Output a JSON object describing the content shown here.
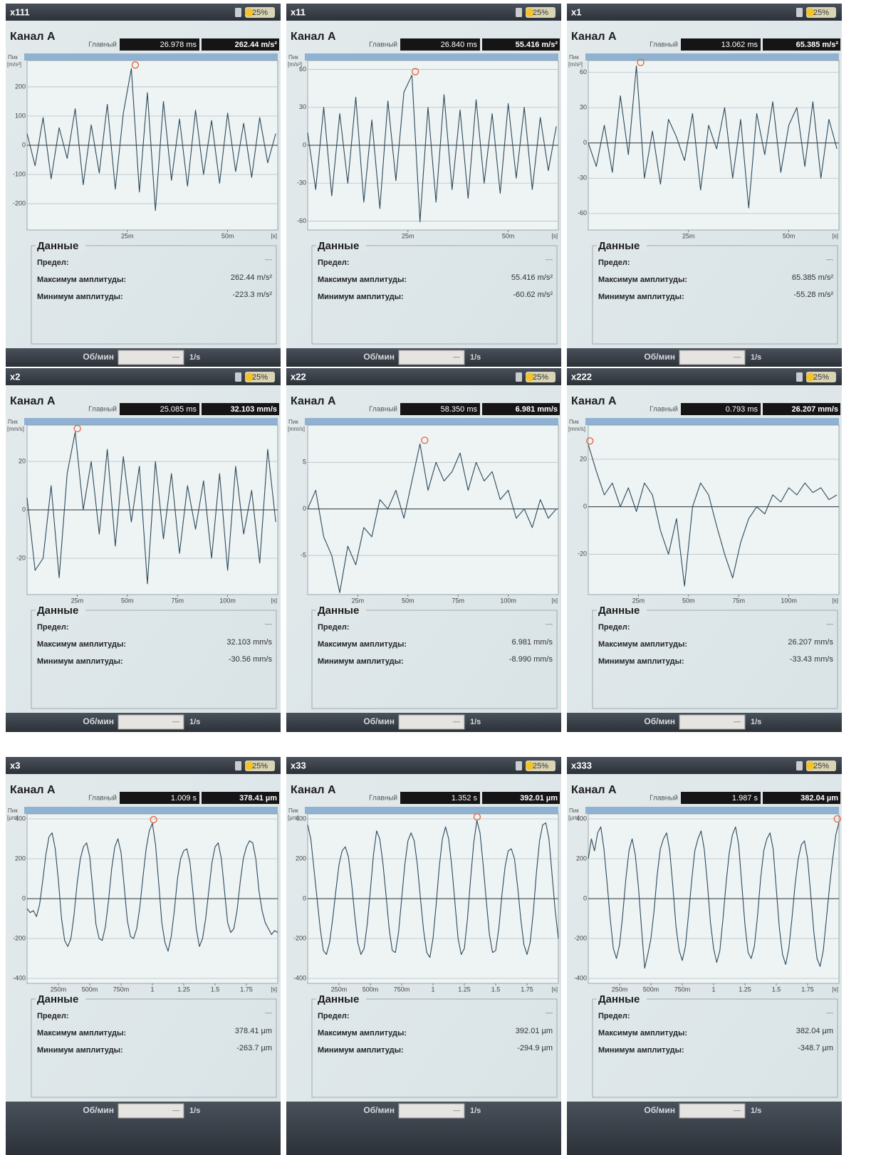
{
  "ui": {
    "battery": "25%",
    "channel": "Канал А",
    "main": "Главный",
    "data_title": "Данные",
    "limit": "Предел:",
    "limit_value": "—",
    "max": "Максимум амплитуды:",
    "min": "Минимум амплитуды:",
    "rpm": "Об/мин",
    "rpm_input": "—",
    "rpm_unit": "1/s"
  },
  "chart_data": [
    {
      "type": "line",
      "title": "x111",
      "y_label": "Пик",
      "y_unit": "[m/s²]",
      "x_label": "[s]",
      "color": "#2b4a5c",
      "grid": true,
      "xlim": [
        0,
        0.0625
      ],
      "xticks": [
        {
          "value": 0.025,
          "label": "25m"
        },
        {
          "value": 0.05,
          "label": "50m"
        }
      ],
      "ylim": [
        -290,
        290
      ],
      "yticks": [
        200,
        100,
        0,
        -100,
        -200
      ],
      "x": [
        0,
        0.002,
        0.004,
        0.006,
        0.008,
        0.01,
        0.012,
        0.014,
        0.016,
        0.018,
        0.02,
        0.022,
        0.024,
        0.026,
        0.028,
        0.03,
        0.032,
        0.034,
        0.036,
        0.038,
        0.04,
        0.042,
        0.044,
        0.046,
        0.048,
        0.05,
        0.052,
        0.054,
        0.056,
        0.058,
        0.06,
        0.062
      ],
      "values": [
        40,
        -70,
        95,
        -115,
        60,
        -45,
        125,
        -135,
        70,
        -95,
        140,
        -150,
        110,
        262.44,
        -160,
        180,
        -223.3,
        150,
        -120,
        90,
        -140,
        120,
        -100,
        85,
        -130,
        110,
        -90,
        75,
        -110,
        95,
        -60,
        40
      ],
      "cursor": {
        "x": 0.026978,
        "y": 262.44,
        "x_label": "26.978 ms",
        "y_label": "262.44 m/s²"
      },
      "max_label": "262.44 m/s²",
      "min_label": "-223.3 m/s²"
    },
    {
      "type": "line",
      "title": "x11",
      "y_label": "Пик",
      "y_unit": "[m/s²]",
      "x_label": "[s]",
      "color": "#2b4a5c",
      "grid": true,
      "xlim": [
        0,
        0.0625
      ],
      "xticks": [
        {
          "value": 0.025,
          "label": "25m"
        },
        {
          "value": 0.05,
          "label": "50m"
        }
      ],
      "ylim": [
        -67,
        67
      ],
      "yticks": [
        60,
        30,
        0,
        -30,
        -60
      ],
      "x": [
        0,
        0.002,
        0.004,
        0.006,
        0.008,
        0.01,
        0.012,
        0.014,
        0.016,
        0.018,
        0.02,
        0.022,
        0.024,
        0.026,
        0.028,
        0.03,
        0.032,
        0.034,
        0.036,
        0.038,
        0.04,
        0.042,
        0.044,
        0.046,
        0.048,
        0.05,
        0.052,
        0.054,
        0.056,
        0.058,
        0.06,
        0.062
      ],
      "values": [
        10,
        -35,
        30,
        -40,
        25,
        -30,
        38,
        -45,
        20,
        -50,
        35,
        -28,
        42,
        55.416,
        -60.62,
        30,
        -45,
        40,
        -35,
        28,
        -42,
        36,
        -30,
        25,
        -38,
        33,
        -26,
        30,
        -35,
        22,
        -20,
        15
      ],
      "cursor": {
        "x": 0.02684,
        "y": 55.416,
        "x_label": "26.840 ms",
        "y_label": "55.416 m/s²"
      },
      "max_label": "55.416 m/s²",
      "min_label": "-60.62 m/s²"
    },
    {
      "type": "line",
      "title": "x1",
      "y_label": "Пик",
      "y_unit": "[m/s²]",
      "x_label": "[s]",
      "color": "#2b4a5c",
      "grid": true,
      "xlim": [
        0,
        0.0625
      ],
      "xticks": [
        {
          "value": 0.025,
          "label": "25m"
        },
        {
          "value": 0.05,
          "label": "50m"
        }
      ],
      "ylim": [
        -74,
        70
      ],
      "yticks": [
        60,
        30,
        0,
        -30,
        -60
      ],
      "x": [
        0,
        0.002,
        0.004,
        0.006,
        0.008,
        0.01,
        0.012,
        0.014,
        0.016,
        0.018,
        0.02,
        0.022,
        0.024,
        0.026,
        0.028,
        0.03,
        0.032,
        0.034,
        0.036,
        0.038,
        0.04,
        0.042,
        0.044,
        0.046,
        0.048,
        0.05,
        0.052,
        0.054,
        0.056,
        0.058,
        0.06,
        0.062
      ],
      "values": [
        0,
        -20,
        15,
        -25,
        40,
        -10,
        65.385,
        -30,
        10,
        -35,
        20,
        5,
        -15,
        25,
        -40,
        15,
        -5,
        30,
        -30,
        20,
        -55.28,
        25,
        -10,
        35,
        -25,
        15,
        30,
        -20,
        35,
        -30,
        20,
        -5
      ],
      "cursor": {
        "x": 0.013062,
        "y": 65.385,
        "x_label": "13.062 ms",
        "y_label": "65.385 m/s²"
      },
      "max_label": "65.385 m/s²",
      "min_label": "-55.28 m/s²"
    },
    {
      "type": "line",
      "title": "x2",
      "y_label": "Пик",
      "y_unit": "[mm/s]",
      "x_label": "[s]",
      "color": "#2b4a5c",
      "grid": true,
      "xlim": [
        0,
        0.125
      ],
      "xticks": [
        {
          "value": 0.025,
          "label": "25m"
        },
        {
          "value": 0.05,
          "label": "50m"
        },
        {
          "value": 0.075,
          "label": "75m"
        },
        {
          "value": 0.1,
          "label": "100m"
        }
      ],
      "ylim": [
        -35,
        35
      ],
      "yticks": [
        20,
        0,
        -20
      ],
      "x": [
        0,
        0.004,
        0.008,
        0.012,
        0.016,
        0.02,
        0.024,
        0.028,
        0.032,
        0.036,
        0.04,
        0.044,
        0.048,
        0.052,
        0.056,
        0.06,
        0.064,
        0.068,
        0.072,
        0.076,
        0.08,
        0.084,
        0.088,
        0.092,
        0.096,
        0.1,
        0.104,
        0.108,
        0.112,
        0.116,
        0.12,
        0.124
      ],
      "values": [
        5,
        -25,
        -20,
        10,
        -28,
        15,
        32.103,
        0,
        20,
        -10,
        25,
        -15,
        22,
        -5,
        18,
        -30.56,
        20,
        -12,
        15,
        -18,
        10,
        -8,
        12,
        -20,
        15,
        -25,
        18,
        -10,
        8,
        -22,
        25,
        -5
      ],
      "cursor": {
        "x": 0.025085,
        "y": 32.103,
        "x_label": "25.085 ms",
        "y_label": "32.103 mm/s"
      },
      "max_label": "32.103 mm/s",
      "min_label": "-30.56 mm/s"
    },
    {
      "type": "line",
      "title": "x22",
      "y_label": "Пик",
      "y_unit": "[mm/s]",
      "x_label": "[s]",
      "color": "#2b4a5c",
      "grid": true,
      "xlim": [
        0,
        0.125
      ],
      "xticks": [
        {
          "value": 0.025,
          "label": "25m"
        },
        {
          "value": 0.05,
          "label": "50m"
        },
        {
          "value": 0.075,
          "label": "75m"
        },
        {
          "value": 0.1,
          "label": "100m"
        }
      ],
      "ylim": [
        -9.2,
        9
      ],
      "yticks": [
        5,
        0,
        -5
      ],
      "x": [
        0,
        0.004,
        0.008,
        0.012,
        0.016,
        0.02,
        0.024,
        0.028,
        0.032,
        0.036,
        0.04,
        0.044,
        0.048,
        0.052,
        0.056,
        0.06,
        0.064,
        0.068,
        0.072,
        0.076,
        0.08,
        0.084,
        0.088,
        0.092,
        0.096,
        0.1,
        0.104,
        0.108,
        0.112,
        0.116,
        0.12,
        0.124
      ],
      "values": [
        0,
        2,
        -3,
        -5,
        -8.99,
        -4,
        -6,
        -2,
        -3,
        1,
        0,
        2,
        -1,
        3,
        6.981,
        2,
        5,
        3,
        4,
        6,
        2,
        5,
        3,
        4,
        1,
        2,
        -1,
        0,
        -2,
        1,
        -1,
        0
      ],
      "cursor": {
        "x": 0.05835,
        "y": 6.981,
        "x_label": "58.350 ms",
        "y_label": "6.981 mm/s"
      },
      "max_label": "6.981 mm/s",
      "min_label": "-8.990 mm/s"
    },
    {
      "type": "line",
      "title": "x222",
      "y_label": "Пик",
      "y_unit": "[mm/s]",
      "x_label": "[s]",
      "color": "#2b4a5c",
      "grid": true,
      "xlim": [
        0,
        0.125
      ],
      "xticks": [
        {
          "value": 0.025,
          "label": "25m"
        },
        {
          "value": 0.05,
          "label": "50m"
        },
        {
          "value": 0.075,
          "label": "75m"
        },
        {
          "value": 0.1,
          "label": "100m"
        }
      ],
      "ylim": [
        -37,
        34.4
      ],
      "yticks": [
        20,
        0,
        -20
      ],
      "x": [
        0,
        0.004,
        0.008,
        0.012,
        0.016,
        0.02,
        0.024,
        0.028,
        0.032,
        0.036,
        0.04,
        0.044,
        0.048,
        0.052,
        0.056,
        0.06,
        0.064,
        0.068,
        0.072,
        0.076,
        0.08,
        0.084,
        0.088,
        0.092,
        0.096,
        0.1,
        0.104,
        0.108,
        0.112,
        0.116,
        0.12,
        0.124
      ],
      "values": [
        26.207,
        15,
        5,
        10,
        0,
        8,
        -2,
        10,
        5,
        -10,
        -20,
        -5,
        -33.43,
        0,
        10,
        5,
        -8,
        -20,
        -30,
        -15,
        -5,
        0,
        -3,
        5,
        2,
        8,
        5,
        10,
        6,
        8,
        3,
        5
      ],
      "cursor": {
        "x": 0.000793,
        "y": 26.207,
        "x_label": "0.793 ms",
        "y_label": "26.207 mm/s"
      },
      "max_label": "26.207 mm/s",
      "min_label": "-33.43 mm/s"
    },
    {
      "type": "line",
      "title": "x3",
      "y_label": "Пик",
      "y_unit": "[µm]",
      "x_label": "[s]",
      "color": "#2b4a5c",
      "grid": true,
      "xlim": [
        0,
        2
      ],
      "xticks": [
        {
          "value": 0.25,
          "label": "250m"
        },
        {
          "value": 0.5,
          "label": "500m"
        },
        {
          "value": 0.75,
          "label": "750m"
        },
        1,
        1.25,
        1.5,
        1.75
      ],
      "ylim": [
        -425,
        425
      ],
      "yticks": [
        400,
        200,
        0,
        -200,
        -400
      ],
      "x": [
        0,
        0.025,
        0.05,
        0.075,
        0.1,
        0.125,
        0.15,
        0.175,
        0.2,
        0.225,
        0.25,
        0.275,
        0.3,
        0.325,
        0.35,
        0.375,
        0.4,
        0.425,
        0.45,
        0.475,
        0.5,
        0.525,
        0.55,
        0.575,
        0.6,
        0.625,
        0.65,
        0.675,
        0.7,
        0.725,
        0.75,
        0.775,
        0.8,
        0.825,
        0.85,
        0.875,
        0.9,
        0.925,
        0.95,
        0.975,
        1,
        1.025,
        1.05,
        1.075,
        1.1,
        1.125,
        1.15,
        1.175,
        1.2,
        1.225,
        1.25,
        1.275,
        1.3,
        1.325,
        1.35,
        1.375,
        1.4,
        1.425,
        1.45,
        1.475,
        1.5,
        1.525,
        1.55,
        1.575,
        1.6,
        1.625,
        1.65,
        1.675,
        1.7,
        1.725,
        1.75,
        1.775,
        1.8,
        1.825,
        1.85,
        1.875,
        1.9,
        1.925,
        1.95,
        1.975,
        2
      ],
      "values": [
        -50,
        -70,
        -60,
        -90,
        -30,
        90,
        220,
        310,
        330,
        250,
        90,
        -100,
        -210,
        -240,
        -200,
        -80,
        80,
        200,
        260,
        280,
        210,
        40,
        -130,
        -200,
        -210,
        -140,
        -10,
        150,
        260,
        300,
        230,
        60,
        -110,
        -190,
        -200,
        -150,
        -40,
        110,
        250,
        340,
        378.41,
        270,
        80,
        -120,
        -220,
        -263.7,
        -190,
        -60,
        100,
        200,
        240,
        250,
        180,
        20,
        -150,
        -240,
        -200,
        -100,
        40,
        180,
        260,
        280,
        200,
        40,
        -120,
        -170,
        -150,
        -60,
        80,
        200,
        260,
        290,
        280,
        200,
        40,
        -60,
        -120,
        -150,
        -180,
        -160,
        -170
      ],
      "cursor": {
        "x": 1.009,
        "y": 378.41,
        "x_label": "1.009 s",
        "y_label": "378.41 µm"
      },
      "max_label": "378.41 µm",
      "min_label": "-263.7 µm"
    },
    {
      "type": "line",
      "title": "x33",
      "y_label": "Пик",
      "y_unit": "[µm]",
      "x_label": "[s]",
      "color": "#2b4a5c",
      "grid": true,
      "xlim": [
        0,
        2
      ],
      "xticks": [
        {
          "value": 0.25,
          "label": "250m"
        },
        {
          "value": 0.5,
          "label": "500m"
        },
        {
          "value": 0.75,
          "label": "750m"
        },
        1,
        1.25,
        1.5,
        1.75
      ],
      "ylim": [
        -425,
        425
      ],
      "yticks": [
        400,
        200,
        0,
        -200,
        -400
      ],
      "x": [
        0,
        0.025,
        0.05,
        0.075,
        0.1,
        0.125,
        0.15,
        0.175,
        0.2,
        0.225,
        0.25,
        0.275,
        0.3,
        0.325,
        0.35,
        0.375,
        0.4,
        0.425,
        0.45,
        0.475,
        0.5,
        0.525,
        0.55,
        0.575,
        0.6,
        0.625,
        0.65,
        0.675,
        0.7,
        0.725,
        0.75,
        0.775,
        0.8,
        0.825,
        0.85,
        0.875,
        0.9,
        0.925,
        0.95,
        0.975,
        1,
        1.025,
        1.05,
        1.075,
        1.1,
        1.125,
        1.15,
        1.175,
        1.2,
        1.225,
        1.25,
        1.275,
        1.3,
        1.325,
        1.35,
        1.375,
        1.4,
        1.425,
        1.45,
        1.475,
        1.5,
        1.525,
        1.55,
        1.575,
        1.6,
        1.625,
        1.65,
        1.675,
        1.7,
        1.725,
        1.75,
        1.775,
        1.8,
        1.825,
        1.85,
        1.875,
        1.9,
        1.925,
        1.95,
        1.975,
        2
      ],
      "values": [
        370,
        300,
        150,
        0,
        -150,
        -260,
        -280,
        -220,
        -100,
        40,
        170,
        240,
        260,
        210,
        80,
        -80,
        -220,
        -280,
        -250,
        -130,
        40,
        220,
        340,
        300,
        180,
        20,
        -150,
        -260,
        -270,
        -170,
        0,
        170,
        290,
        330,
        290,
        170,
        0,
        -160,
        -270,
        -294.9,
        -200,
        -30,
        160,
        300,
        360,
        300,
        160,
        -20,
        -200,
        -280,
        -250,
        -100,
        100,
        280,
        392.01,
        330,
        170,
        -10,
        -180,
        -270,
        -260,
        -150,
        20,
        160,
        240,
        250,
        200,
        60,
        -100,
        -230,
        -280,
        -220,
        -70,
        130,
        290,
        370,
        380,
        300,
        120,
        -60,
        -200
      ],
      "cursor": {
        "x": 1.352,
        "y": 392.01,
        "x_label": "1.352 s",
        "y_label": "392.01 µm"
      },
      "max_label": "392.01 µm",
      "min_label": "-294.9 µm"
    },
    {
      "type": "line",
      "title": "x333",
      "y_label": "Пик",
      "y_unit": "[µm]",
      "x_label": "[s]",
      "color": "#2b4a5c",
      "grid": true,
      "xlim": [
        0,
        2
      ],
      "xticks": [
        {
          "value": 0.25,
          "label": "250m"
        },
        {
          "value": 0.5,
          "label": "500m"
        },
        {
          "value": 0.75,
          "label": "750m"
        },
        1,
        1.25,
        1.5,
        1.75
      ],
      "ylim": [
        -425,
        425
      ],
      "yticks": [
        400,
        200,
        0,
        -200,
        -400
      ],
      "x": [
        0,
        0.025,
        0.05,
        0.075,
        0.1,
        0.125,
        0.15,
        0.175,
        0.2,
        0.225,
        0.25,
        0.275,
        0.3,
        0.325,
        0.35,
        0.375,
        0.4,
        0.425,
        0.45,
        0.475,
        0.5,
        0.525,
        0.55,
        0.575,
        0.6,
        0.625,
        0.65,
        0.675,
        0.7,
        0.725,
        0.75,
        0.775,
        0.8,
        0.825,
        0.85,
        0.875,
        0.9,
        0.925,
        0.95,
        0.975,
        1,
        1.025,
        1.05,
        1.075,
        1.1,
        1.125,
        1.15,
        1.175,
        1.2,
        1.225,
        1.25,
        1.275,
        1.3,
        1.325,
        1.35,
        1.375,
        1.4,
        1.425,
        1.45,
        1.475,
        1.5,
        1.525,
        1.55,
        1.575,
        1.6,
        1.625,
        1.65,
        1.675,
        1.7,
        1.725,
        1.75,
        1.775,
        1.8,
        1.825,
        1.85,
        1.875,
        1.9,
        1.925,
        1.95,
        1.975,
        2
      ],
      "values": [
        200,
        300,
        240,
        330,
        360,
        250,
        80,
        -100,
        -250,
        -300,
        -230,
        -80,
        100,
        240,
        300,
        220,
        60,
        -150,
        -348.7,
        -280,
        -200,
        -60,
        120,
        250,
        300,
        330,
        240,
        60,
        -140,
        -260,
        -310,
        -240,
        -80,
        90,
        240,
        300,
        340,
        250,
        80,
        -120,
        -250,
        -320,
        -260,
        -100,
        80,
        230,
        320,
        360,
        270,
        70,
        -130,
        -270,
        -300,
        -240,
        -90,
        100,
        240,
        300,
        330,
        250,
        50,
        -150,
        -280,
        -330,
        -250,
        -100,
        70,
        200,
        270,
        290,
        200,
        20,
        -170,
        -300,
        -340,
        -260,
        -100,
        60,
        200,
        320,
        382.04
      ],
      "cursor": {
        "x": 1.987,
        "y": 382.04,
        "x_label": "1.987 s",
        "y_label": "382.04 µm"
      },
      "max_label": "382.04 µm",
      "min_label": "-348.7 µm"
    }
  ]
}
